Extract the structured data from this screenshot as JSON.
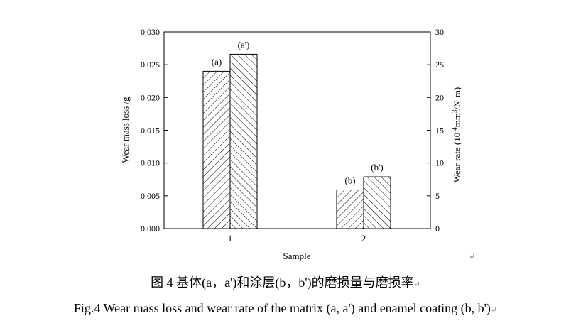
{
  "chart_data": {
    "type": "bar",
    "categories": [
      "1",
      "2"
    ],
    "series": [
      {
        "name": "Wear mass loss",
        "axis": "left",
        "values": [
          0.024,
          0.0059
        ],
        "labels": [
          "(a)",
          "(b)"
        ],
        "hatch": "forward"
      },
      {
        "name": "Wear rate",
        "axis": "right",
        "values": [
          26.6,
          7.9
        ],
        "labels": [
          "(a')",
          "(b')"
        ],
        "hatch": "back"
      }
    ],
    "xlabel": "Sample",
    "ylabel": "Wear mass loss /g",
    "y2label_parts": {
      "pre": "Wear rate (10",
      "sup1": "-4",
      "mid": "mm",
      "sup2": "3",
      "post": "/N·m)"
    },
    "ylim": [
      0,
      0.03
    ],
    "y2lim": [
      0,
      30
    ],
    "yticks": [
      "0.000",
      "0.005",
      "0.010",
      "0.015",
      "0.020",
      "0.025",
      "0.030"
    ],
    "y2ticks": [
      "0",
      "5",
      "10",
      "15",
      "20",
      "25",
      "30"
    ]
  },
  "caption": {
    "cn": "图 4  基体(a，a')和涂层(b，b')的磨损量与磨损率",
    "en": "Fig.4 Wear mass loss and wear rate of the matrix (a, a') and enamel coating (b, b')",
    "return_mark": "↵"
  }
}
